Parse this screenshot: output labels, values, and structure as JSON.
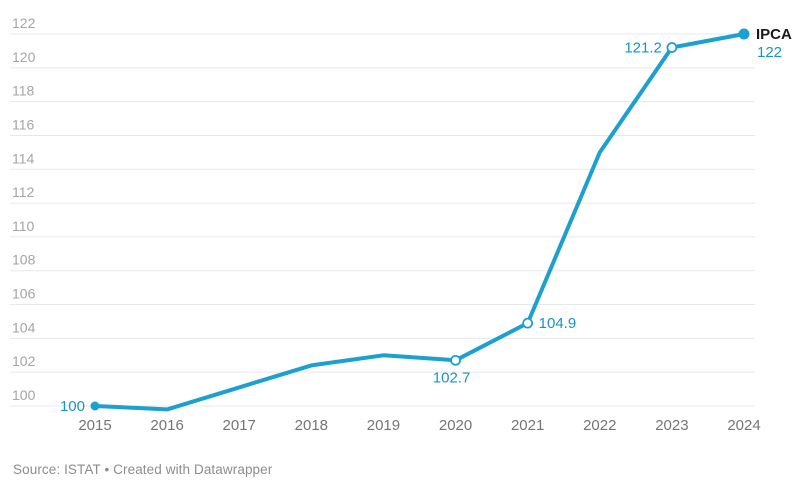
{
  "chart_data": {
    "type": "line",
    "title": "",
    "categories": [
      "2015",
      "2016",
      "2017",
      "2018",
      "2019",
      "2020",
      "2021",
      "2022",
      "2023",
      "2024"
    ],
    "series": [
      {
        "name": "IPCA",
        "values": [
          100,
          99.8,
          101.1,
          102.4,
          103.0,
          102.7,
          104.9,
          115.0,
          121.2,
          122
        ]
      }
    ],
    "ylim": [
      99.5,
      122.3
    ],
    "yticks": [
      100,
      102,
      104,
      106,
      108,
      110,
      112,
      114,
      116,
      118,
      120,
      122
    ],
    "grid": "on",
    "xlabel": "",
    "ylabel": "",
    "legend_position": "end-of-line",
    "series_label": "IPCA",
    "value_labels": [
      {
        "category": "2015",
        "text": "100",
        "position": "left",
        "marker": "filled"
      },
      {
        "category": "2020",
        "text": "102.7",
        "position": "below",
        "marker": "open"
      },
      {
        "category": "2021",
        "text": "104.9",
        "position": "right",
        "marker": "open"
      },
      {
        "category": "2023",
        "text": "121.2",
        "position": "left",
        "marker": "open"
      },
      {
        "category": "2024",
        "text": "122",
        "position": "below-right",
        "marker": "filled-large"
      }
    ]
  },
  "colors": {
    "line": "#1CA0D0",
    "value_label": "#1794C7",
    "grid": "#E8E8E8",
    "y_tick": "#A5A5A5",
    "x_tick": "#757575",
    "series_label": "#1A1A1A",
    "marker_fill_open": "#FFFFFF"
  },
  "footer": {
    "source": "Source: ISTAT",
    "separator": "•",
    "attribution": "Created with Datawrapper"
  }
}
